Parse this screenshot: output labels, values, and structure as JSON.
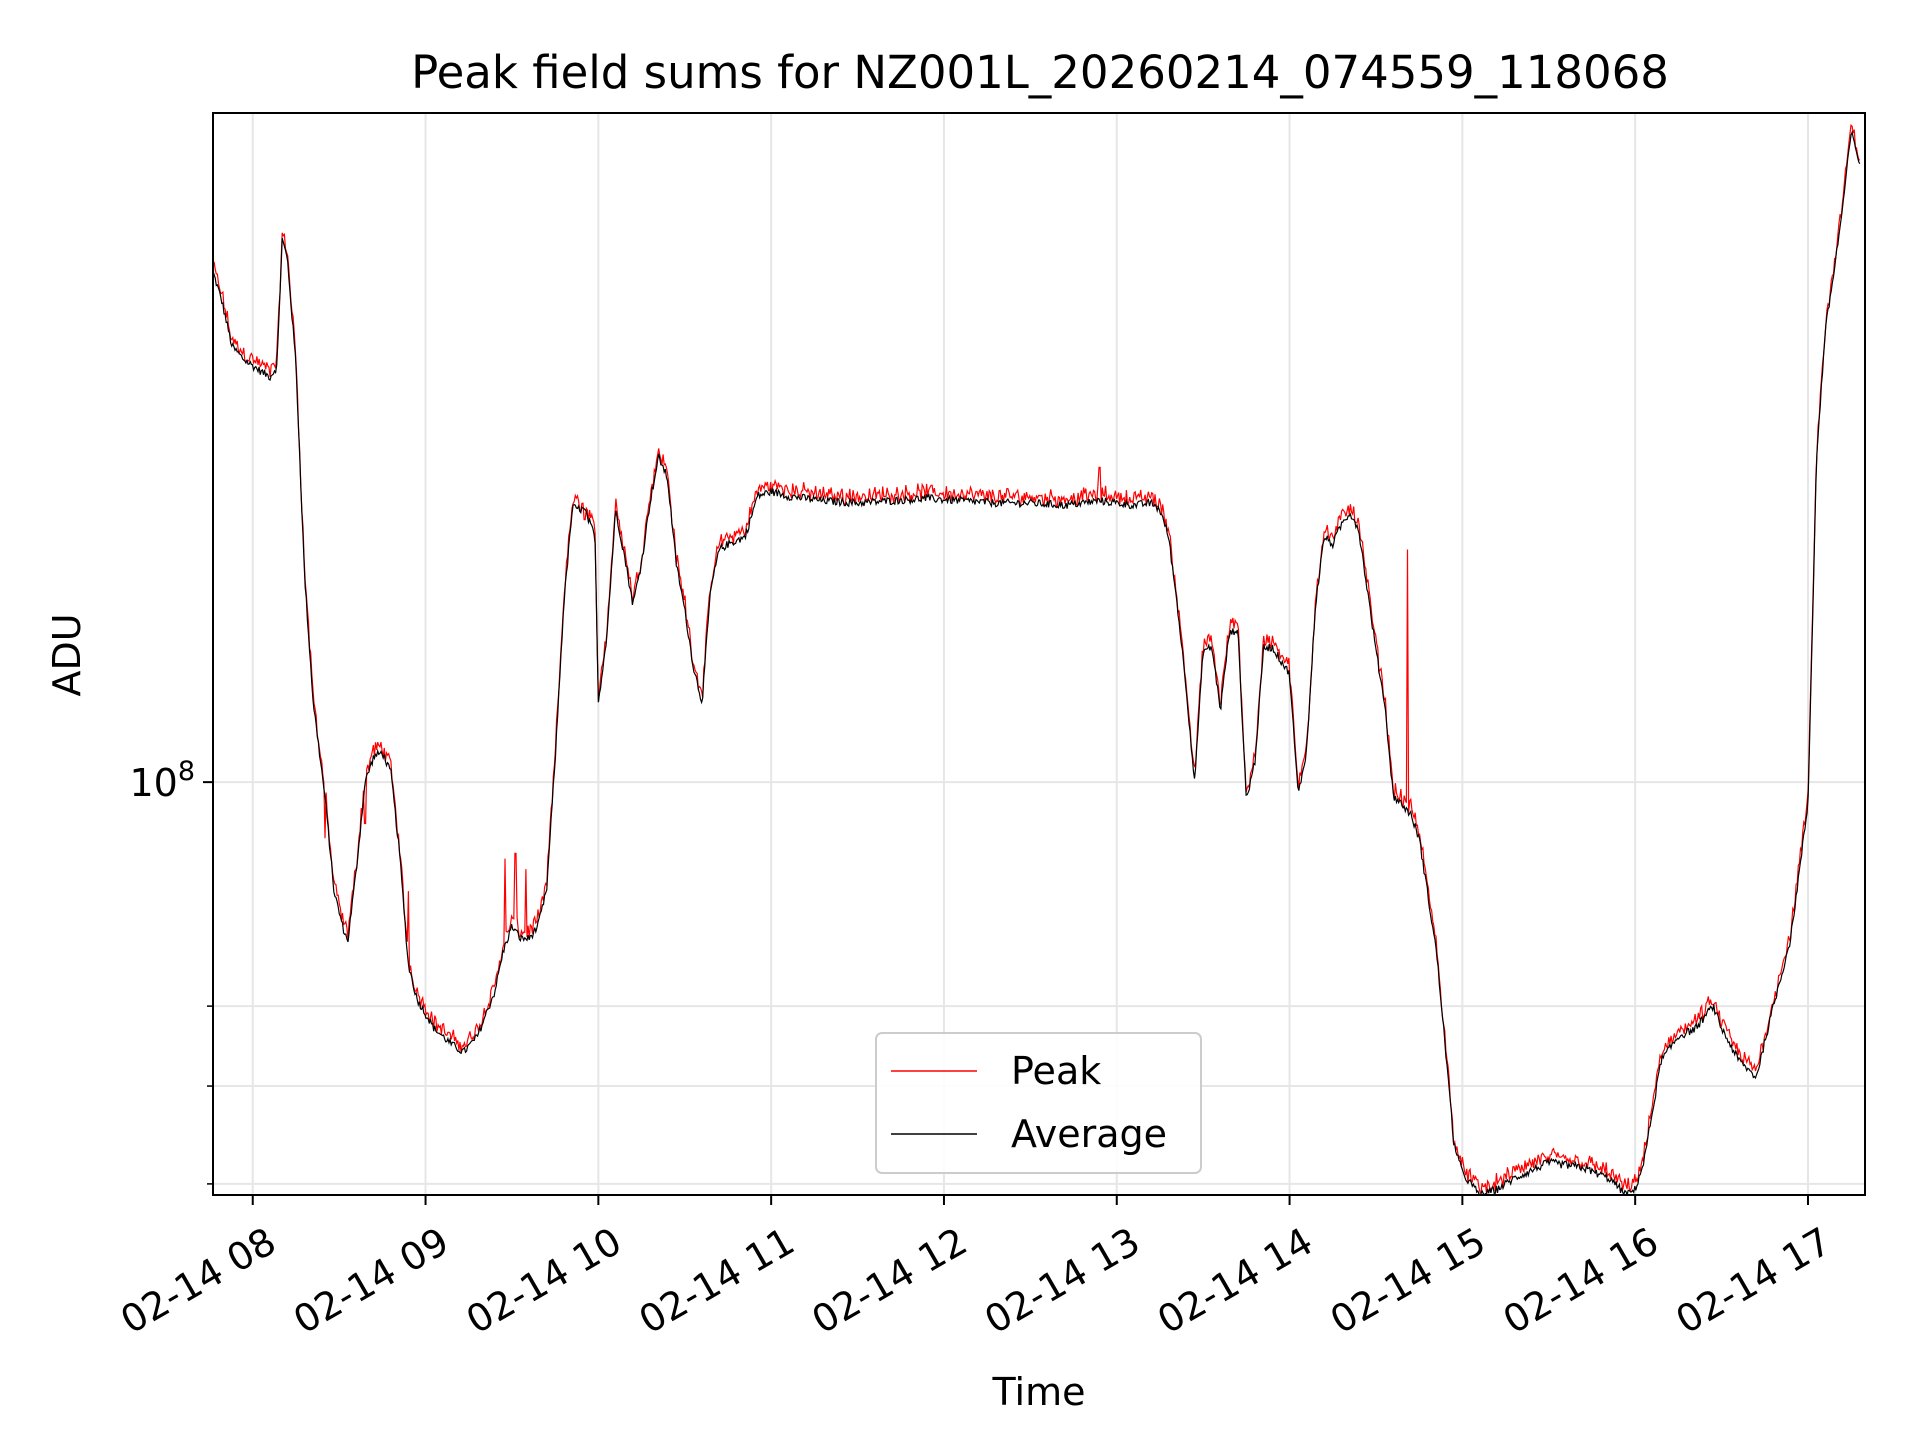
{
  "chart_data": {
    "type": "line",
    "title": "Peak field sums for NZ001L_20260214_074559_118068",
    "xlabel": "Time",
    "ylabel": "ADU",
    "yscale": "log",
    "x_unit": "hours since 2026-02-14 00:00",
    "xlim": [
      7.77,
      17.33
    ],
    "ylim": [
      39000000,
      460000000
    ],
    "y_tick_major": [
      {
        "value": 100000000,
        "label_base": "10",
        "label_exp": "8"
      }
    ],
    "y_tick_minor": [
      40000000,
      50000000,
      60000000
    ],
    "x_ticks": [
      {
        "value": 8,
        "label": "02-14 08"
      },
      {
        "value": 9,
        "label": "02-14 09"
      },
      {
        "value": 10,
        "label": "02-14 10"
      },
      {
        "value": 11,
        "label": "02-14 11"
      },
      {
        "value": 12,
        "label": "02-14 12"
      },
      {
        "value": 13,
        "label": "02-14 13"
      },
      {
        "value": 14,
        "label": "02-14 14"
      },
      {
        "value": 15,
        "label": "02-14 15"
      },
      {
        "value": 16,
        "label": "02-14 16"
      },
      {
        "value": 17,
        "label": "02-14 17"
      }
    ],
    "grid": true,
    "legend_position": "lower-center",
    "series": [
      {
        "name": "Peak",
        "color": "#ff0000",
        "spikes": [
          [
            8.17,
            350000000
          ],
          [
            8.42,
            88000000
          ],
          [
            8.45,
            86000000
          ],
          [
            8.65,
            91000000
          ],
          [
            8.9,
            78000000
          ],
          [
            9.46,
            84000000
          ],
          [
            9.52,
            85000000
          ],
          [
            9.58,
            82000000
          ],
          [
            9.92,
            182000000
          ],
          [
            10.5,
            153000000
          ],
          [
            12.9,
            205000000
          ],
          [
            13.03,
            190000000
          ],
          [
            13.07,
            189000000
          ],
          [
            14.68,
            170000000
          ]
        ]
      },
      {
        "name": "Average",
        "color": "#000000",
        "points": [
          [
            7.77,
            320000000
          ],
          [
            7.82,
            300000000
          ],
          [
            7.88,
            270000000
          ],
          [
            7.95,
            262000000
          ],
          [
            8.05,
            255000000
          ],
          [
            8.1,
            252000000
          ],
          [
            8.14,
            258000000
          ],
          [
            8.17,
            345000000
          ],
          [
            8.2,
            330000000
          ],
          [
            8.25,
            260000000
          ],
          [
            8.3,
            160000000
          ],
          [
            8.35,
            120000000
          ],
          [
            8.42,
            96000000
          ],
          [
            8.47,
            78000000
          ],
          [
            8.52,
            72000000
          ],
          [
            8.55,
            69500000
          ],
          [
            8.6,
            82000000
          ],
          [
            8.65,
            100000000
          ],
          [
            8.7,
            106000000
          ],
          [
            8.75,
            107000000
          ],
          [
            8.8,
            102000000
          ],
          [
            8.85,
            85000000
          ],
          [
            8.9,
            66000000
          ],
          [
            8.95,
            61000000
          ],
          [
            9.05,
            57000000
          ],
          [
            9.15,
            55000000
          ],
          [
            9.22,
            54000000
          ],
          [
            9.3,
            56000000
          ],
          [
            9.4,
            62000000
          ],
          [
            9.45,
            68000000
          ],
          [
            9.5,
            72000000
          ],
          [
            9.55,
            70000000
          ],
          [
            9.6,
            70000000
          ],
          [
            9.65,
            72000000
          ],
          [
            9.7,
            78000000
          ],
          [
            9.75,
            105000000
          ],
          [
            9.8,
            150000000
          ],
          [
            9.85,
            187000000
          ],
          [
            9.92,
            186000000
          ],
          [
            9.98,
            175000000
          ],
          [
            10.0,
            120000000
          ],
          [
            10.05,
            140000000
          ],
          [
            10.1,
            186000000
          ],
          [
            10.15,
            168000000
          ],
          [
            10.2,
            150000000
          ],
          [
            10.25,
            165000000
          ],
          [
            10.3,
            190000000
          ],
          [
            10.35,
            210000000
          ],
          [
            10.4,
            200000000
          ],
          [
            10.45,
            165000000
          ],
          [
            10.5,
            148000000
          ],
          [
            10.55,
            130000000
          ],
          [
            10.6,
            120000000
          ],
          [
            10.65,
            155000000
          ],
          [
            10.7,
            170000000
          ],
          [
            10.75,
            172000000
          ],
          [
            10.85,
            175000000
          ],
          [
            10.92,
            192000000
          ],
          [
            11.0,
            194000000
          ],
          [
            11.1,
            192000000
          ],
          [
            11.3,
            190000000
          ],
          [
            11.5,
            189000000
          ],
          [
            11.7,
            190000000
          ],
          [
            11.9,
            191000000
          ],
          [
            12.1,
            190000000
          ],
          [
            12.3,
            189000000
          ],
          [
            12.5,
            189000000
          ],
          [
            12.7,
            188000000
          ],
          [
            12.9,
            190000000
          ],
          [
            13.1,
            188000000
          ],
          [
            13.2,
            189000000
          ],
          [
            13.25,
            186000000
          ],
          [
            13.3,
            175000000
          ],
          [
            13.35,
            150000000
          ],
          [
            13.4,
            125000000
          ],
          [
            13.45,
            100000000
          ],
          [
            13.5,
            135000000
          ],
          [
            13.55,
            136000000
          ],
          [
            13.6,
            118000000
          ],
          [
            13.65,
            140000000
          ],
          [
            13.7,
            142000000
          ],
          [
            13.75,
            96000000
          ],
          [
            13.8,
            105000000
          ],
          [
            13.85,
            136000000
          ],
          [
            13.9,
            136000000
          ],
          [
            13.95,
            132000000
          ],
          [
            14.0,
            128000000
          ],
          [
            14.05,
            97000000
          ],
          [
            14.1,
            108000000
          ],
          [
            14.15,
            150000000
          ],
          [
            14.2,
            175000000
          ],
          [
            14.25,
            172000000
          ],
          [
            14.3,
            180000000
          ],
          [
            14.35,
            185000000
          ],
          [
            14.4,
            178000000
          ],
          [
            14.45,
            155000000
          ],
          [
            14.5,
            135000000
          ],
          [
            14.55,
            120000000
          ],
          [
            14.6,
            97000000
          ],
          [
            14.65,
            95000000
          ],
          [
            14.7,
            93000000
          ],
          [
            14.75,
            88000000
          ],
          [
            14.85,
            68000000
          ],
          [
            14.9,
            55000000
          ],
          [
            14.95,
            44000000
          ],
          [
            15.0,
            41000000
          ],
          [
            15.1,
            39000000
          ],
          [
            15.2,
            39500000
          ],
          [
            15.3,
            40500000
          ],
          [
            15.5,
            42000000
          ],
          [
            15.7,
            41500000
          ],
          [
            15.85,
            40500000
          ],
          [
            15.95,
            39000000
          ],
          [
            16.0,
            39500000
          ],
          [
            16.05,
            42000000
          ],
          [
            16.15,
            53000000
          ],
          [
            16.25,
            56000000
          ],
          [
            16.35,
            57000000
          ],
          [
            16.45,
            60000000
          ],
          [
            16.5,
            57000000
          ],
          [
            16.6,
            53000000
          ],
          [
            16.7,
            51000000
          ],
          [
            16.8,
            60000000
          ],
          [
            16.9,
            70000000
          ],
          [
            17.0,
            95000000
          ],
          [
            17.05,
            210000000
          ],
          [
            17.1,
            280000000
          ],
          [
            17.15,
            320000000
          ],
          [
            17.2,
            370000000
          ],
          [
            17.25,
            440000000
          ],
          [
            17.3,
            410000000
          ]
        ]
      }
    ]
  }
}
